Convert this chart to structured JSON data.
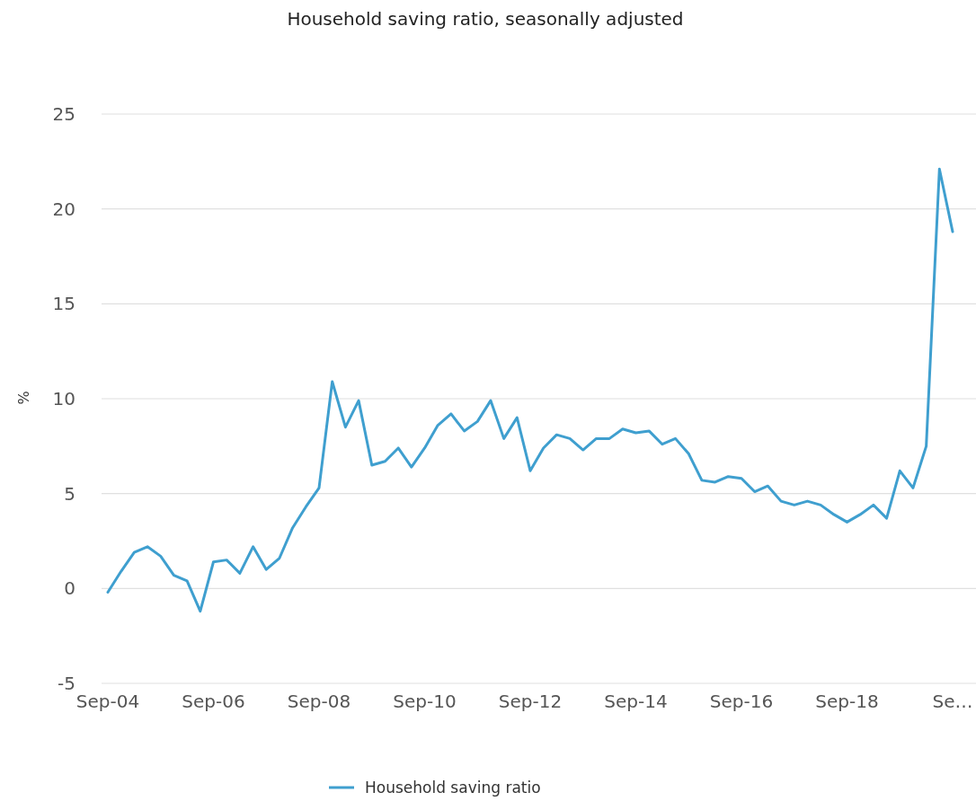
{
  "chart_data": {
    "type": "line",
    "title": "Household saving ratio, seasonally adjusted",
    "ylabel": "%",
    "categories": [
      "Sep-04",
      null,
      null,
      null,
      null,
      null,
      null,
      null,
      "Sep-06",
      null,
      null,
      null,
      null,
      null,
      null,
      null,
      "Sep-08",
      null,
      null,
      null,
      null,
      null,
      null,
      null,
      "Sep-10",
      null,
      null,
      null,
      null,
      null,
      null,
      null,
      "Sep-12",
      null,
      null,
      null,
      null,
      null,
      null,
      null,
      "Sep-14",
      null,
      null,
      null,
      null,
      null,
      null,
      null,
      "Sep-16",
      null,
      null,
      null,
      null,
      null,
      null,
      null,
      "Sep-18",
      null,
      null,
      null,
      null,
      null,
      null,
      null,
      "Se…"
    ],
    "series": [
      {
        "name": "Household saving ratio",
        "color": "#3f9fcf",
        "values": [
          -0.2,
          0.9,
          1.9,
          2.2,
          1.7,
          0.7,
          0.4,
          -1.2,
          1.4,
          1.5,
          0.8,
          2.2,
          1.0,
          1.6,
          3.2,
          4.3,
          5.3,
          10.9,
          8.5,
          9.9,
          6.5,
          6.7,
          7.4,
          6.4,
          7.4,
          8.6,
          9.2,
          8.3,
          8.8,
          9.9,
          7.9,
          9.0,
          6.2,
          7.4,
          8.1,
          7.9,
          7.3,
          7.9,
          7.9,
          8.4,
          8.2,
          8.3,
          7.6,
          7.9,
          7.1,
          5.7,
          5.6,
          5.9,
          5.8,
          5.1,
          5.4,
          4.6,
          4.4,
          4.6,
          4.4,
          3.9,
          3.5,
          3.9,
          4.4,
          3.7,
          6.2,
          5.3,
          7.5,
          22.1,
          18.8
        ]
      }
    ],
    "ylim": [
      -5,
      25
    ],
    "yticks": [
      -5,
      0,
      5,
      10,
      15,
      20,
      25
    ],
    "grid": "y",
    "legend": "bottom",
    "marker": "none",
    "line_style": "solid"
  }
}
